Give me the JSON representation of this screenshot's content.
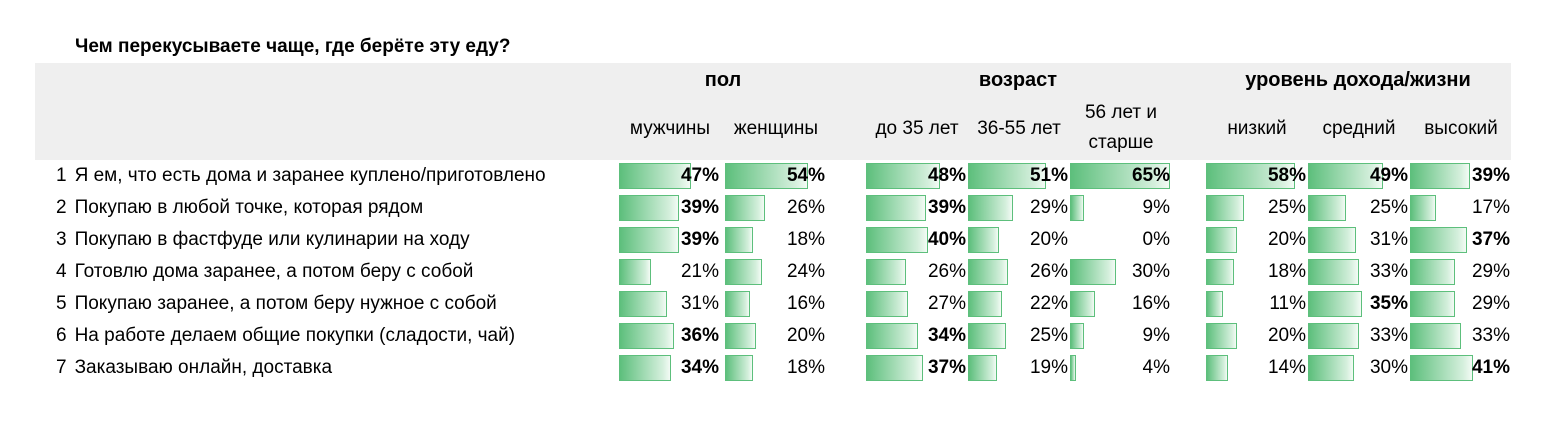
{
  "chart_data": {
    "type": "table",
    "title": "Чем перекусываете чаще, где берёте эту еду?",
    "groups": [
      {
        "label": "пол",
        "columns": [
          "мужчины",
          "женщины"
        ]
      },
      {
        "label": "возраст",
        "columns": [
          "до 35 лет",
          "36-55 лет",
          "56 лет и старше"
        ]
      },
      {
        "label": "уровень дохода/жизни",
        "columns": [
          "низкий",
          "средний",
          "высокий"
        ]
      }
    ],
    "column_labels": [
      "мужчины",
      "женщины",
      "до 35 лет",
      "36-55 лет",
      "56 лет и\nстарше",
      "низкий",
      "средний",
      "высокий"
    ],
    "rows": [
      {
        "num": "1",
        "label": "Я ем, что есть дома и заранее куплено/приготовлено",
        "values": [
          47,
          54,
          48,
          51,
          65,
          58,
          49,
          39
        ],
        "bold": [
          true,
          true,
          true,
          true,
          true,
          true,
          true,
          true
        ]
      },
      {
        "num": "2",
        "label": "Покупаю в любой точке, которая рядом",
        "values": [
          39,
          26,
          39,
          29,
          9,
          25,
          25,
          17
        ],
        "bold": [
          true,
          false,
          true,
          false,
          false,
          false,
          false,
          false
        ]
      },
      {
        "num": "3",
        "label": "Покупаю в фастфуде или кулинарии на ходу",
        "values": [
          39,
          18,
          40,
          20,
          0,
          20,
          31,
          37
        ],
        "bold": [
          true,
          false,
          true,
          false,
          false,
          false,
          false,
          true
        ]
      },
      {
        "num": "4",
        "label": "Готовлю дома заранее, а потом беру с собой",
        "values": [
          21,
          24,
          26,
          26,
          30,
          18,
          33,
          29
        ],
        "bold": [
          false,
          false,
          false,
          false,
          false,
          false,
          false,
          false
        ]
      },
      {
        "num": "5",
        "label": "Покупаю заранее, а потом беру нужное с собой",
        "values": [
          31,
          16,
          27,
          22,
          16,
          11,
          35,
          29
        ],
        "bold": [
          false,
          false,
          false,
          false,
          false,
          false,
          true,
          false
        ]
      },
      {
        "num": "6",
        "label": "На работе делаем общие покупки (сладости, чай)",
        "values": [
          36,
          20,
          34,
          25,
          9,
          20,
          33,
          33
        ],
        "bold": [
          true,
          false,
          true,
          false,
          false,
          false,
          false,
          false
        ]
      },
      {
        "num": "7",
        "label": "Заказываю онлайн, доставка",
        "values": [
          34,
          18,
          37,
          19,
          4,
          14,
          30,
          41
        ],
        "bold": [
          true,
          false,
          true,
          false,
          false,
          false,
          false,
          true
        ]
      }
    ],
    "unit": "%",
    "max_value": 65
  }
}
